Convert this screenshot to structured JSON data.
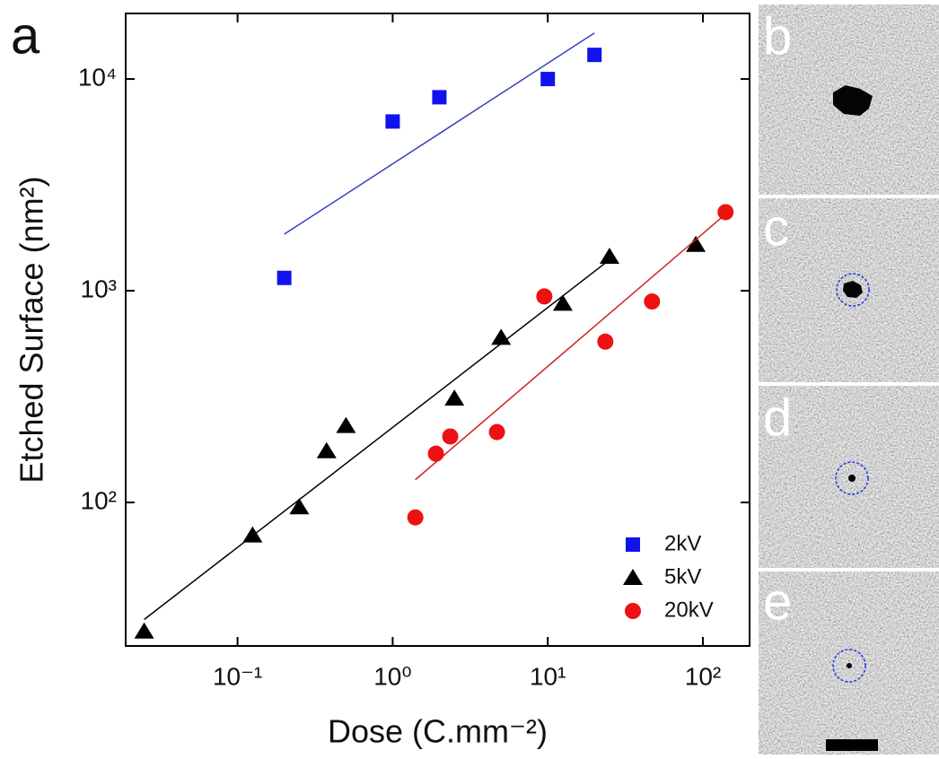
{
  "chart_data": {
    "type": "scatter",
    "panel_label": "a",
    "x_label": "Dose (C.mm⁻²)",
    "y_label": "Etched Surface (nm²)",
    "xscale": "log",
    "yscale": "log",
    "xlim": [
      0.019,
      200
    ],
    "ylim": [
      21,
      20400
    ],
    "xticks": [
      {
        "value": 0.1,
        "label": "10⁻¹"
      },
      {
        "value": 1,
        "label": "10⁰"
      },
      {
        "value": 10,
        "label": "10¹"
      },
      {
        "value": 100,
        "label": "10²"
      }
    ],
    "yticks": [
      {
        "value": 100,
        "label": "10²"
      },
      {
        "value": 1000,
        "label": "10³"
      },
      {
        "value": 10000,
        "label": "10⁴"
      }
    ],
    "legend": "lower right",
    "series": [
      {
        "name": "2kV",
        "color": "#1212ee",
        "marker": "square",
        "x": [
          0.2,
          1,
          2,
          10,
          20
        ],
        "values": [
          1150,
          6300,
          8200,
          10000,
          13000
        ],
        "fit": {
          "color": "#3344bb",
          "x": [
            0.2,
            20
          ],
          "values": [
            1850,
            16500
          ]
        }
      },
      {
        "name": "5kV",
        "color": "#000000",
        "marker": "triangle",
        "x": [
          0.025,
          0.125,
          0.25,
          0.375,
          0.5,
          2.5,
          5,
          12.5,
          25,
          90
        ],
        "values": [
          24.6,
          70,
          95,
          175,
          230,
          310,
          600,
          870,
          1450,
          1650
        ],
        "fit": {
          "color": "#000000",
          "x": [
            0.025,
            25
          ],
          "values": [
            28,
            1400
          ]
        }
      },
      {
        "name": "20kV",
        "color": "#ee1111",
        "marker": "circle",
        "x": [
          1.4,
          1.9,
          2.35,
          4.7,
          9.5,
          23.5,
          47,
          140
        ],
        "values": [
          85,
          170,
          205,
          215,
          940,
          575,
          890,
          2350
        ],
        "fit": {
          "color": "#cc2222",
          "x": [
            1.4,
            140
          ],
          "values": [
            128,
            2300
          ]
        }
      }
    ]
  },
  "image_panels": [
    {
      "label": "b"
    },
    {
      "label": "c"
    },
    {
      "label": "d"
    },
    {
      "label": "e"
    }
  ]
}
